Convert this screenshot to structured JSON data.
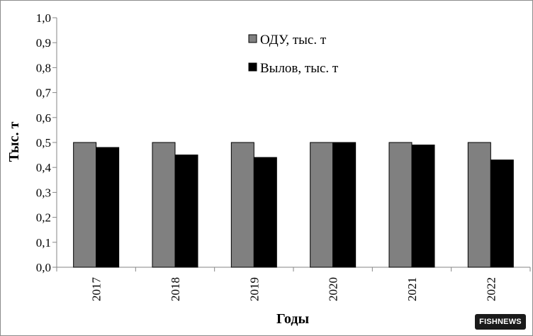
{
  "chart_data": {
    "type": "bar",
    "categories": [
      "2017",
      "2018",
      "2019",
      "2020",
      "2021",
      "2022"
    ],
    "series": [
      {
        "name": "ОДУ, тыс. т",
        "color": "#808080",
        "values": [
          0.5,
          0.5,
          0.5,
          0.5,
          0.5,
          0.5
        ]
      },
      {
        "name": "Вылов, тыс. т",
        "color": "#000000",
        "values": [
          0.48,
          0.45,
          0.44,
          0.5,
          0.49,
          0.43
        ]
      }
    ],
    "yticks": [
      "0,0",
      "0,1",
      "0,2",
      "0,3",
      "0,4",
      "0,5",
      "0,6",
      "0,7",
      "0,8",
      "0,9",
      "1,0"
    ],
    "ylim": [
      0,
      1
    ],
    "xlabel": "Годы",
    "ylabel": "Тыс. т",
    "legend_position": "top-center",
    "grid": false
  },
  "watermark": {
    "text": "FISHNEWS"
  }
}
